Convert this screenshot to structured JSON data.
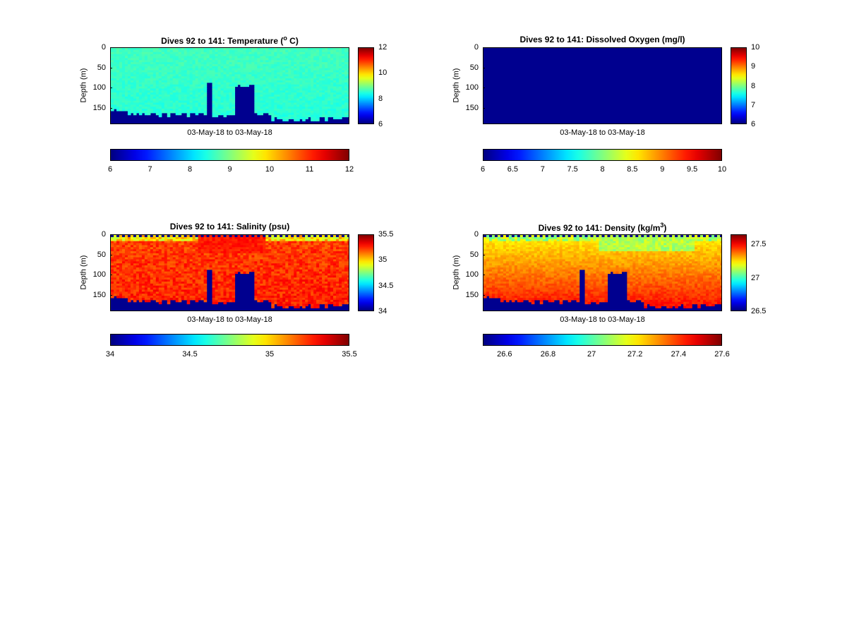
{
  "colors": {
    "jet_low": "#00008f",
    "jet_high": "#800000"
  },
  "chart_data": [
    {
      "type": "heatmap",
      "title_prefix": "Dives 92 to 141: Temperature (",
      "title_sup": "o",
      "title_suffix": " C)",
      "xlabel": "03-May-18 to 03-May-18",
      "ylabel": "Depth (m)",
      "yticks": [
        "0",
        "50",
        "100",
        "150"
      ],
      "ylim": [
        0,
        190
      ],
      "variable": "temperature",
      "clim": [
        6,
        12
      ],
      "colorbar_ticks": [
        "12",
        "10",
        "8",
        "6"
      ],
      "h_colorbar_ticks": [
        "6",
        "7",
        "8",
        "9",
        "10",
        "11",
        "12"
      ]
    },
    {
      "type": "heatmap",
      "title_prefix": "Dives 92 to 141: Dissolved Oxygen (mg/l)",
      "title_sup": "",
      "title_suffix": "",
      "xlabel": "03-May-18 to 03-May-18",
      "ylabel": "Depth (m)",
      "yticks": [
        "0",
        "50",
        "100",
        "150"
      ],
      "ylim": [
        0,
        190
      ],
      "variable": "oxygen",
      "clim": [
        6,
        10
      ],
      "colorbar_ticks": [
        "10",
        "9",
        "8",
        "7",
        "6"
      ],
      "h_colorbar_ticks": [
        "6",
        "6.5",
        "7",
        "7.5",
        "8",
        "8.5",
        "9",
        "9.5",
        "10"
      ]
    },
    {
      "type": "heatmap",
      "title_prefix": "Dives 92 to 141: Salinity (psu)",
      "title_sup": "",
      "title_suffix": "",
      "xlabel": "03-May-18 to 03-May-18",
      "ylabel": "Depth (m)",
      "yticks": [
        "0",
        "50",
        "100",
        "150"
      ],
      "ylim": [
        0,
        190
      ],
      "variable": "salinity",
      "clim": [
        34,
        35.5
      ],
      "colorbar_ticks": [
        "35.5",
        "35",
        "34.5",
        "34"
      ],
      "h_colorbar_ticks": [
        "34",
        "34.5",
        "35",
        "35.5"
      ]
    },
    {
      "type": "heatmap",
      "title_prefix": "Dives 92 to 141: Density (kg/m",
      "title_sup": "3",
      "title_suffix": ")",
      "xlabel": "03-May-18 to 03-May-18",
      "ylabel": "Depth (m)",
      "yticks": [
        "0",
        "50",
        "100",
        "150"
      ],
      "ylim": [
        0,
        190
      ],
      "variable": "density",
      "clim": [
        26.5,
        27.65
      ],
      "colorbar_ticks": [
        "27.5",
        "27",
        "26.5"
      ],
      "h_colorbar_ticks": [
        "26.6",
        "26.8",
        "27",
        "27.2",
        "27.4",
        "27.6"
      ]
    }
  ]
}
